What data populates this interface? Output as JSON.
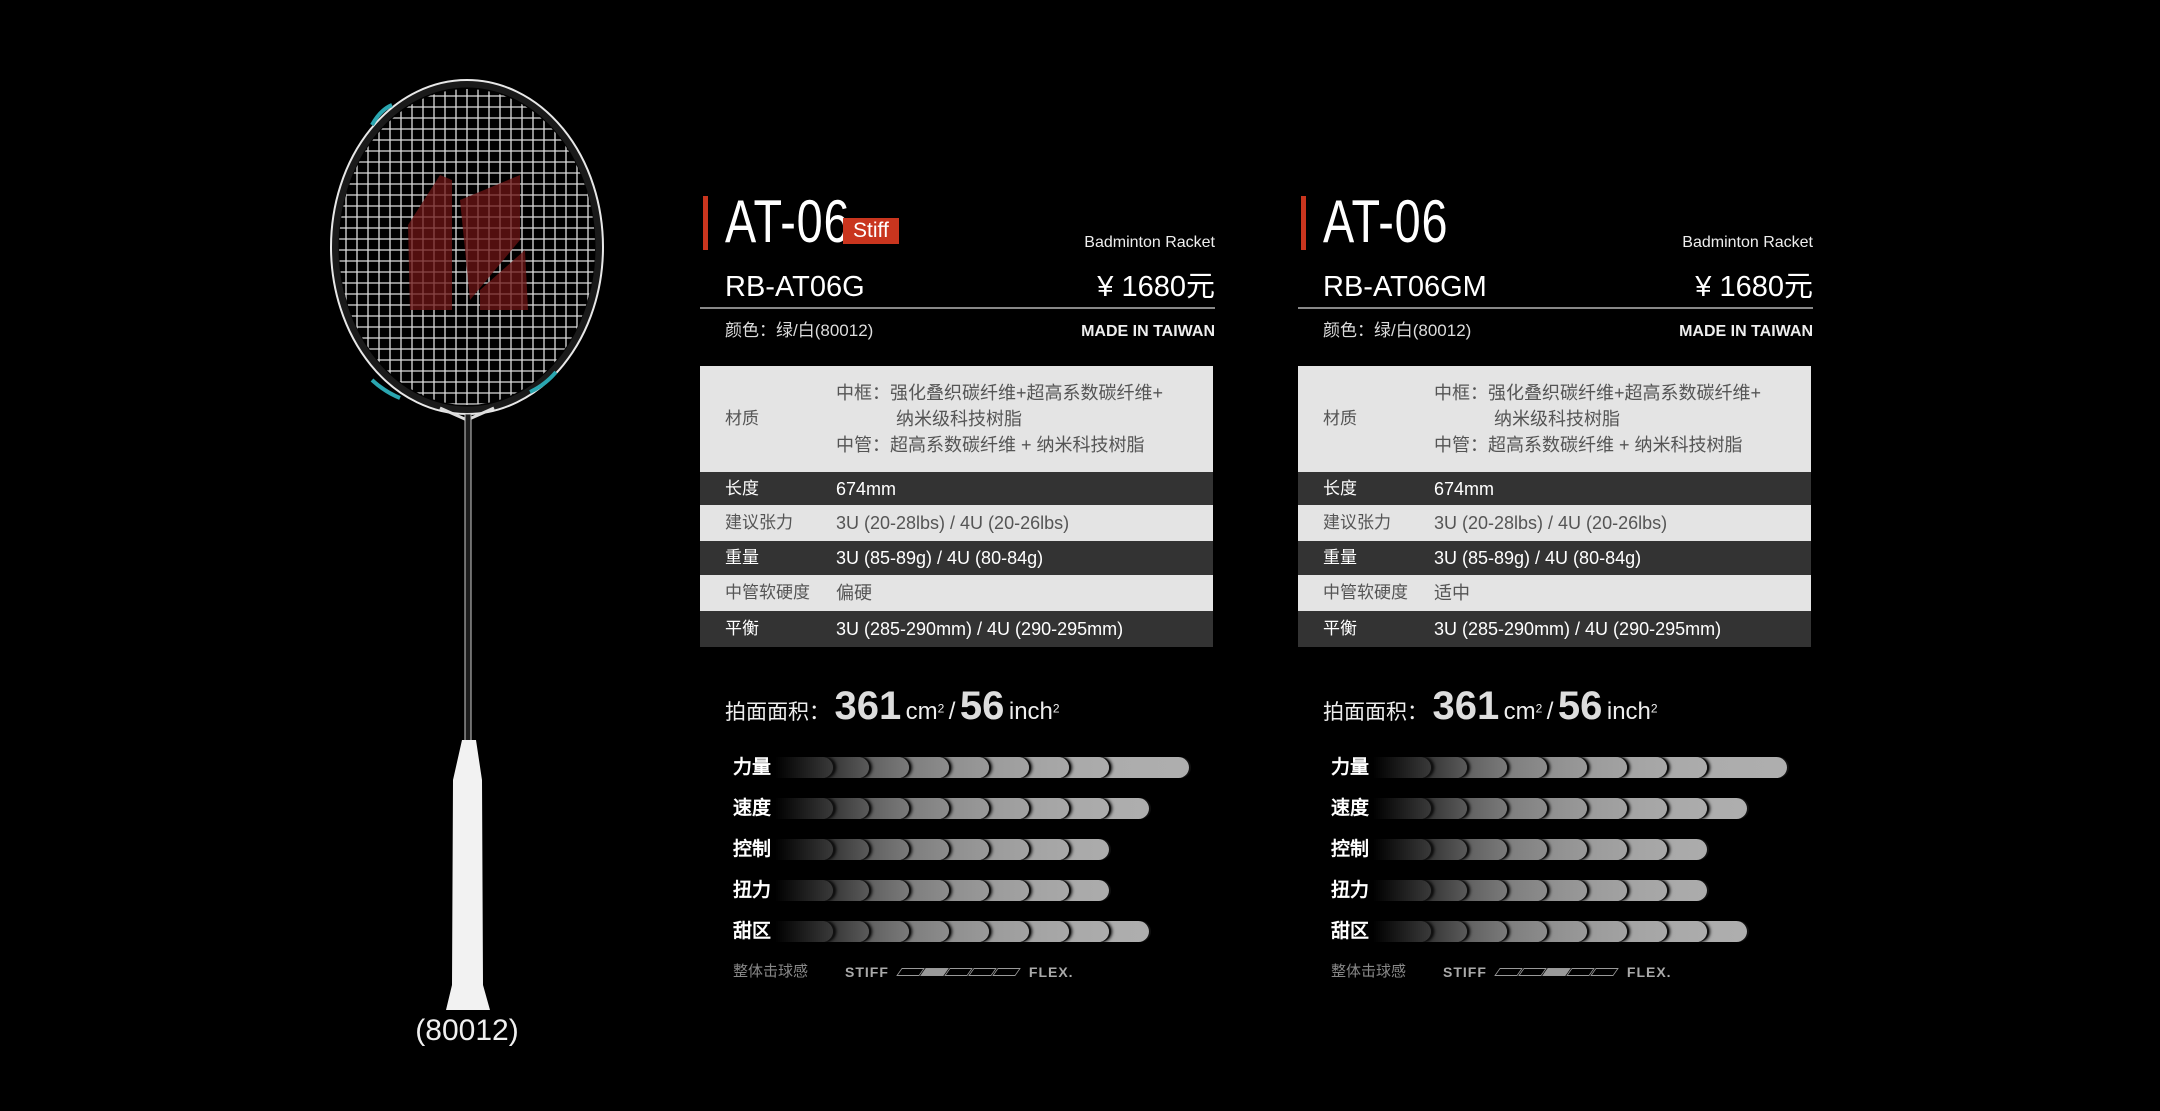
{
  "racket": {
    "caption": "(80012)",
    "frame_color": "#111111",
    "accent": "#2aa6b0",
    "logo_color": "#8a1a1a"
  },
  "accent_color": "#c9351e",
  "panels": [
    {
      "title": "AT-06",
      "badge": "Stiff",
      "subtitle": "Badminton Racket",
      "model": "RB-AT06G",
      "price": "¥ 1680元",
      "color": "颜色：绿/白(80012)",
      "made_in": "MADE IN TAIWAN",
      "specs": [
        {
          "label": "材质",
          "lines": [
            "中框：强化叠织碳纤维+超高系数碳纤维+",
            "纳米级科技树脂",
            "中管：超高系数碳纤维 + 纳米科技树脂"
          ]
        },
        {
          "label": "长度",
          "lines": [
            "674mm"
          ]
        },
        {
          "label": "建议张力",
          "lines": [
            "3U (20-28lbs) / 4U (20-26lbs)"
          ]
        },
        {
          "label": "重量",
          "lines": [
            "3U (85-89g) / 4U (80-84g)"
          ]
        },
        {
          "label": "中管软硬度",
          "lines": [
            "偏硬"
          ]
        },
        {
          "label": "平衡",
          "lines": [
            "3U (285-290mm) / 4U (290-295mm)"
          ]
        }
      ],
      "area": {
        "label": "拍面面积",
        "sep": "：",
        "cm": "361",
        "cm_unit": "cm",
        "inch": "56",
        "inch_unit": "inch",
        "sq": "2",
        "slash": "/"
      },
      "ratings": [
        {
          "label": "力量",
          "value": 10
        },
        {
          "label": "速度",
          "value": 9
        },
        {
          "label": "控制",
          "value": 8
        },
        {
          "label": "扭力",
          "value": 8
        },
        {
          "label": "甜区",
          "value": 9
        }
      ],
      "feel": {
        "label": "整体击球感",
        "left": "STIFF",
        "right": "FLEX.",
        "position": 2,
        "steps": 5
      }
    },
    {
      "title": "AT-06",
      "subtitle": "Badminton Racket",
      "model": "RB-AT06GM",
      "price": "¥ 1680元",
      "color": "颜色：绿/白(80012)",
      "made_in": "MADE IN TAIWAN",
      "specs": [
        {
          "label": "材质",
          "lines": [
            "中框：强化叠织碳纤维+超高系数碳纤维+",
            "纳米级科技树脂",
            "中管：超高系数碳纤维 + 纳米科技树脂"
          ]
        },
        {
          "label": "长度",
          "lines": [
            "674mm"
          ]
        },
        {
          "label": "建议张力",
          "lines": [
            "3U (20-28lbs) / 4U (20-26lbs)"
          ]
        },
        {
          "label": "重量",
          "lines": [
            "3U (85-89g) / 4U (80-84g)"
          ]
        },
        {
          "label": "中管软硬度",
          "lines": [
            "适中"
          ]
        },
        {
          "label": "平衡",
          "lines": [
            "3U (285-290mm) / 4U (290-295mm)"
          ]
        }
      ],
      "area": {
        "label": "拍面面积",
        "sep": "：",
        "cm": "361",
        "cm_unit": "cm",
        "inch": "56",
        "inch_unit": "inch",
        "sq": "2",
        "slash": "/"
      },
      "ratings": [
        {
          "label": "力量",
          "value": 10
        },
        {
          "label": "速度",
          "value": 9
        },
        {
          "label": "控制",
          "value": 8
        },
        {
          "label": "扭力",
          "value": 8
        },
        {
          "label": "甜区",
          "value": 9
        }
      ],
      "feel": {
        "label": "整体击球感",
        "left": "STIFF",
        "right": "FLEX.",
        "position": 3,
        "steps": 5
      }
    }
  ]
}
